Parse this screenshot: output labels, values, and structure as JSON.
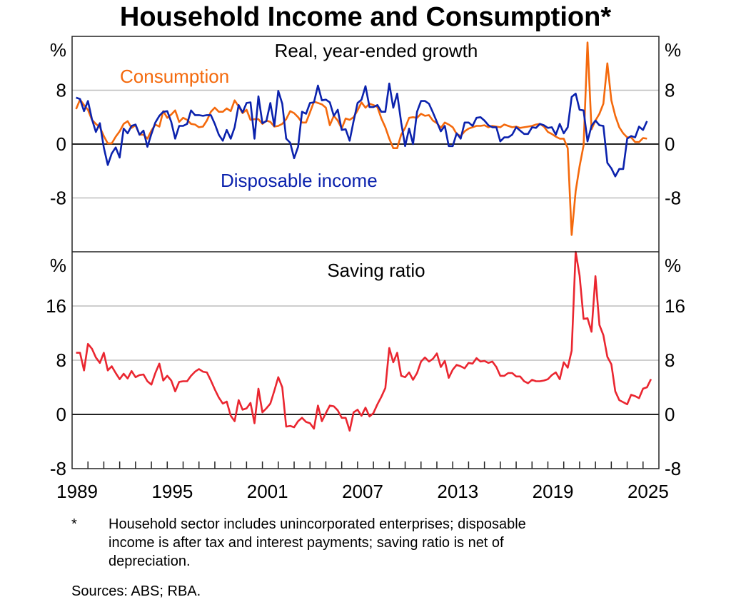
{
  "title": "Household Income and Consumption*",
  "footnote_marker": "*",
  "footnote": "Household sector includes unincorporated enterprises; disposable income is after tax and interest payments; saving ratio is net of depreciation.",
  "footnote_lines": [
    "Household sector includes unincorporated enterprises; disposable",
    "income is after tax and interest payments; saving ratio is net of",
    "depreciation."
  ],
  "sources": "Sources: ABS; RBA.",
  "chart_data": [
    {
      "type": "line",
      "title": "Real, year-ended growth",
      "ylabel": "%",
      "ylim": [
        -16,
        16
      ],
      "yticks": [
        8,
        0,
        -8
      ],
      "xlim": [
        1989,
        2026
      ],
      "frequency": "quarterly",
      "first_period": 1989.25,
      "grid": true,
      "series": [
        {
          "name": "Consumption",
          "color": "#f4690c",
          "values": [
            5.2,
            6.6,
            5.8,
            5.1,
            3.6,
            3.0,
            2.5,
            1.2,
            0.1,
            0.1,
            1.1,
            1.9,
            3.0,
            3.4,
            2.4,
            2.8,
            1.4,
            1.4,
            0.8,
            2.0,
            2.9,
            2.6,
            4.9,
            3.9,
            4.4,
            5.0,
            3.3,
            3.9,
            3.6,
            3.0,
            2.9,
            2.5,
            2.6,
            3.5,
            4.8,
            5.4,
            4.8,
            4.8,
            5.3,
            4.9,
            6.5,
            5.6,
            4.6,
            5.1,
            3.6,
            3.7,
            3.7,
            3.0,
            3.5,
            3.3,
            2.6,
            2.7,
            3.0,
            3.7,
            4.9,
            4.6,
            4.0,
            3.2,
            3.2,
            4.7,
            6.3,
            6.1,
            5.9,
            5.4,
            2.8,
            4.2,
            3.5,
            2.3,
            3.8,
            3.6,
            4.0,
            5.0,
            6.2,
            5.4,
            6.0,
            5.8,
            5.5,
            3.8,
            2.5,
            0.8,
            -0.6,
            -0.6,
            1.4,
            2.4,
            3.9,
            4.0,
            3.9,
            4.5,
            4.2,
            4.3,
            3.5,
            3.1,
            2.4,
            3.2,
            2.9,
            2.5,
            1.5,
            1.2,
            1.9,
            2.3,
            2.5,
            2.7,
            2.7,
            2.8,
            2.5,
            2.7,
            2.6,
            2.5,
            2.9,
            2.7,
            2.5,
            2.6,
            2.4,
            2.5,
            2.6,
            2.7,
            2.9,
            3.0,
            2.6,
            1.8,
            1.5,
            1.1,
            0.8,
            0.8,
            -0.6,
            -13.5,
            -7.0,
            -3.3,
            -0.2,
            15.1,
            2.2,
            3.5,
            4.5,
            6.0,
            12.0,
            6.5,
            4.2,
            2.5,
            1.6,
            1.0,
            1.0,
            0.3,
            0.3,
            0.9,
            0.8
          ]
        },
        {
          "name": "Disposable income",
          "color": "#0b22ad",
          "values": [
            6.9,
            6.7,
            4.9,
            6.4,
            3.7,
            1.8,
            3.1,
            -0.5,
            -3.1,
            -1.4,
            -0.5,
            -2.0,
            2.3,
            1.6,
            2.7,
            2.9,
            1.4,
            2.0,
            -0.4,
            1.5,
            3.2,
            4.2,
            4.8,
            4.9,
            3.3,
            0.8,
            2.7,
            2.7,
            3.0,
            5.0,
            4.3,
            4.3,
            4.2,
            4.3,
            4.3,
            3.0,
            1.4,
            0.5,
            2.1,
            0.8,
            2.5,
            5.8,
            4.7,
            6.1,
            6.2,
            0.8,
            7.1,
            3.1,
            3.4,
            6.1,
            2.7,
            7.9,
            6.0,
            0.8,
            0.2,
            -2.1,
            -0.4,
            4.8,
            4.5,
            6.1,
            6.2,
            8.7,
            6.5,
            6.6,
            6.2,
            4.2,
            5.1,
            2.1,
            2.2,
            0.5,
            3.4,
            6.1,
            6.6,
            8.6,
            5.5,
            5.5,
            5.8,
            4.8,
            4.8,
            9.0,
            5.4,
            7.5,
            3.2,
            -0.3,
            2.3,
            0.0,
            4.8,
            6.4,
            6.4,
            6.0,
            4.7,
            3.3,
            1.9,
            2.7,
            -0.3,
            -0.3,
            1.6,
            0.8,
            3.2,
            3.2,
            2.7,
            3.9,
            4.0,
            3.5,
            2.8,
            2.5,
            2.5,
            0.4,
            1.0,
            1.0,
            1.4,
            2.5,
            2.0,
            1.5,
            1.5,
            2.5,
            2.4,
            3.0,
            2.8,
            2.4,
            2.5,
            1.4,
            3.0,
            1.6,
            2.5,
            7.0,
            7.5,
            5.1,
            5.0,
            0.4,
            2.7,
            3.5,
            2.8,
            2.7,
            -2.8,
            -3.6,
            -4.8,
            -3.7,
            -3.7,
            0.8,
            1.2,
            1.0,
            2.6,
            2.1,
            3.4
          ]
        }
      ]
    },
    {
      "type": "line",
      "title": "Saving ratio",
      "ylabel": "%",
      "ylim": [
        -8,
        24
      ],
      "yticks": [
        16,
        8,
        0,
        -8
      ],
      "xlim": [
        1989,
        2026
      ],
      "xticks": [
        1989,
        1995,
        2001,
        2007,
        2013,
        2019,
        2025
      ],
      "frequency": "quarterly",
      "first_period": 1989.25,
      "grid": true,
      "series": [
        {
          "color": "#ea2630",
          "values": [
            9.1,
            9.1,
            6.5,
            10.4,
            9.7,
            8.4,
            7.6,
            9.1,
            6.5,
            7.1,
            6.1,
            5.2,
            6.0,
            5.3,
            6.4,
            5.5,
            5.8,
            5.9,
            4.9,
            4.4,
            6.1,
            7.5,
            5.0,
            5.7,
            5.0,
            3.4,
            4.8,
            4.9,
            4.9,
            5.7,
            6.3,
            6.7,
            6.3,
            6.2,
            5.0,
            3.7,
            2.5,
            1.6,
            1.9,
            -0.2,
            -1.0,
            2.1,
            0.7,
            0.9,
            1.7,
            -1.3,
            3.8,
            0.3,
            0.9,
            1.6,
            3.5,
            5.5,
            4.0,
            -1.8,
            -1.7,
            -1.9,
            -1.0,
            -0.5,
            -1.1,
            -1.3,
            -2.1,
            1.3,
            -1.0,
            0.2,
            1.3,
            1.2,
            0.6,
            -0.5,
            -0.5,
            -2.4,
            0.3,
            0.7,
            -0.2,
            1.0,
            -0.3,
            0.2,
            1.5,
            2.6,
            3.9,
            9.8,
            7.7,
            9.1,
            5.7,
            5.5,
            6.2,
            5.1,
            6.1,
            7.8,
            8.4,
            7.8,
            8.2,
            9.0,
            7.0,
            7.9,
            5.4,
            6.6,
            7.3,
            7.1,
            6.8,
            7.6,
            7.5,
            8.3,
            7.8,
            7.9,
            7.6,
            7.8,
            7.0,
            5.7,
            5.7,
            6.1,
            6.1,
            5.6,
            5.6,
            4.9,
            4.6,
            5.1,
            4.9,
            4.9,
            5.0,
            5.2,
            5.8,
            6.2,
            5.2,
            7.7,
            6.9,
            9.4,
            24.0,
            20.5,
            14.1,
            14.2,
            12.2,
            20.4,
            13.2,
            11.7,
            8.5,
            7.4,
            3.4,
            2.1,
            1.8,
            1.5,
            2.9,
            2.7,
            2.4,
            3.8,
            4.0,
            5.2
          ]
        }
      ]
    }
  ],
  "labels": {
    "percent": "%",
    "top_title": "Real, year-ended growth",
    "consumption": "Consumption",
    "income": "Disposable income",
    "bottom_title": "Saving ratio",
    "top_ticks": [
      "8",
      "0",
      "-8"
    ],
    "bottom_ticks": [
      "16",
      "8",
      "0",
      "-8"
    ],
    "x_ticks": [
      "1989",
      "1995",
      "2001",
      "2007",
      "2013",
      "2019",
      "2025"
    ]
  }
}
